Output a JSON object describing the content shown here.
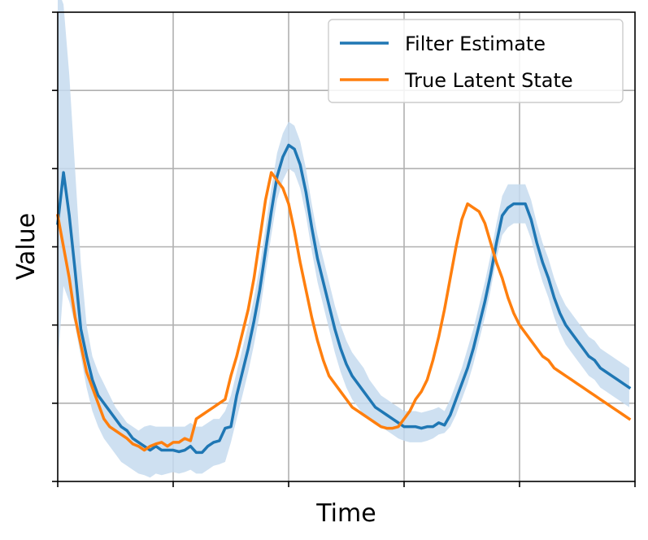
{
  "chart_data": {
    "type": "line",
    "title": "",
    "xlabel": "Time",
    "ylabel": "Value",
    "xlim": [
      0,
      100
    ],
    "ylim": [
      -1.0,
      5.0
    ],
    "grid": true,
    "tick_labels_shown": false,
    "legend": {
      "placement": "upper-right"
    },
    "x_ticks": [
      0,
      20,
      40,
      60,
      80,
      100
    ],
    "y_ticks": [
      -1,
      0,
      1,
      2,
      3,
      4,
      5
    ],
    "colors": {
      "filter": "#1f77b4",
      "truth": "#ff7f0e",
      "band": "#c6dbef"
    },
    "x": [
      0,
      1,
      2,
      3,
      4,
      5,
      6,
      7,
      8,
      9,
      10,
      11,
      12,
      13,
      14,
      15,
      16,
      17,
      18,
      19,
      20,
      21,
      22,
      23,
      24,
      25,
      26,
      27,
      28,
      29,
      30,
      31,
      32,
      33,
      34,
      35,
      36,
      37,
      38,
      39,
      40,
      41,
      42,
      43,
      44,
      45,
      46,
      47,
      48,
      49,
      50,
      51,
      52,
      53,
      54,
      55,
      56,
      57,
      58,
      59,
      60,
      61,
      62,
      63,
      64,
      65,
      66,
      67,
      68,
      69,
      70,
      71,
      72,
      73,
      74,
      75,
      76,
      77,
      78,
      79,
      80,
      81,
      82,
      83,
      84,
      85,
      86,
      87,
      88,
      89,
      90,
      91,
      92,
      93,
      94,
      95,
      96,
      97,
      98,
      99
    ],
    "series": [
      {
        "name": "Filter Estimate",
        "values": [
          2.3,
          2.95,
          2.4,
          1.7,
          0.95,
          0.6,
          0.3,
          0.1,
          0.0,
          -0.1,
          -0.2,
          -0.3,
          -0.35,
          -0.45,
          -0.5,
          -0.55,
          -0.6,
          -0.55,
          -0.6,
          -0.6,
          -0.6,
          -0.62,
          -0.6,
          -0.55,
          -0.63,
          -0.63,
          -0.55,
          -0.5,
          -0.48,
          -0.32,
          -0.3,
          0.1,
          0.4,
          0.7,
          1.05,
          1.45,
          1.95,
          2.45,
          2.9,
          3.15,
          3.3,
          3.25,
          3.05,
          2.7,
          2.25,
          1.85,
          1.55,
          1.25,
          0.95,
          0.7,
          0.5,
          0.35,
          0.25,
          0.15,
          0.05,
          -0.05,
          -0.1,
          -0.15,
          -0.2,
          -0.25,
          -0.3,
          -0.3,
          -0.3,
          -0.32,
          -0.3,
          -0.3,
          -0.25,
          -0.28,
          -0.15,
          0.05,
          0.25,
          0.45,
          0.7,
          1.0,
          1.3,
          1.65,
          2.05,
          2.4,
          2.5,
          2.55,
          2.55,
          2.55,
          2.35,
          2.05,
          1.8,
          1.6,
          1.35,
          1.15,
          1.0,
          0.9,
          0.8,
          0.7,
          0.6,
          0.55,
          0.45,
          0.4,
          0.35,
          0.3,
          0.25,
          0.2
        ]
      },
      {
        "name": "True Latent State",
        "values": [
          2.4,
          2.0,
          1.6,
          1.1,
          0.75,
          0.4,
          0.2,
          0.0,
          -0.2,
          -0.3,
          -0.35,
          -0.4,
          -0.45,
          -0.52,
          -0.55,
          -0.6,
          -0.55,
          -0.52,
          -0.5,
          -0.55,
          -0.5,
          -0.5,
          -0.45,
          -0.48,
          -0.2,
          -0.15,
          -0.1,
          -0.05,
          0.0,
          0.05,
          0.35,
          0.6,
          0.9,
          1.2,
          1.6,
          2.1,
          2.6,
          2.95,
          2.85,
          2.75,
          2.55,
          2.2,
          1.8,
          1.45,
          1.1,
          0.8,
          0.55,
          0.35,
          0.25,
          0.15,
          0.05,
          -0.05,
          -0.1,
          -0.15,
          -0.2,
          -0.25,
          -0.3,
          -0.32,
          -0.32,
          -0.3,
          -0.2,
          -0.1,
          0.05,
          0.15,
          0.3,
          0.55,
          0.85,
          1.2,
          1.6,
          2.0,
          2.35,
          2.55,
          2.5,
          2.45,
          2.3,
          2.05,
          1.8,
          1.6,
          1.35,
          1.15,
          1.0,
          0.9,
          0.8,
          0.7,
          0.6,
          0.55,
          0.45,
          0.4,
          0.35,
          0.3,
          0.25,
          0.2,
          0.15,
          0.1,
          0.05,
          0.0,
          -0.05,
          -0.1,
          -0.15,
          -0.2
        ]
      }
    ],
    "band": {
      "name": "Filter Estimate uncertainty",
      "lower": [
        0.5,
        1.5,
        1.3,
        1.0,
        0.6,
        0.2,
        -0.1,
        -0.3,
        -0.45,
        -0.55,
        -0.65,
        -0.75,
        -0.8,
        -0.85,
        -0.9,
        -0.92,
        -0.95,
        -0.9,
        -0.92,
        -0.9,
        -0.88,
        -0.9,
        -0.88,
        -0.85,
        -0.9,
        -0.9,
        -0.85,
        -0.8,
        -0.78,
        -0.75,
        -0.5,
        -0.2,
        0.1,
        0.4,
        0.75,
        1.15,
        1.65,
        2.15,
        2.6,
        2.85,
        3.0,
        2.95,
        2.75,
        2.4,
        1.95,
        1.55,
        1.25,
        0.95,
        0.65,
        0.4,
        0.2,
        0.05,
        -0.05,
        -0.15,
        -0.2,
        -0.25,
        -0.3,
        -0.35,
        -0.4,
        -0.45,
        -0.48,
        -0.5,
        -0.5,
        -0.5,
        -0.48,
        -0.45,
        -0.4,
        -0.38,
        -0.3,
        -0.15,
        0.05,
        0.25,
        0.5,
        0.8,
        1.1,
        1.45,
        1.85,
        2.15,
        2.25,
        2.3,
        2.3,
        2.3,
        2.1,
        1.8,
        1.55,
        1.35,
        1.1,
        0.9,
        0.75,
        0.65,
        0.55,
        0.45,
        0.35,
        0.3,
        0.2,
        0.15,
        0.1,
        0.05,
        0.0,
        -0.05
      ],
      "upper": [
        5.3,
        5.1,
        4.2,
        3.0,
        1.8,
        1.0,
        0.6,
        0.4,
        0.25,
        0.1,
        -0.05,
        -0.15,
        -0.25,
        -0.3,
        -0.35,
        -0.3,
        -0.28,
        -0.3,
        -0.3,
        -0.3,
        -0.3,
        -0.3,
        -0.3,
        -0.25,
        -0.3,
        -0.3,
        -0.25,
        -0.2,
        -0.2,
        -0.1,
        0.1,
        0.4,
        0.7,
        1.0,
        1.35,
        1.75,
        2.25,
        2.75,
        3.2,
        3.45,
        3.6,
        3.55,
        3.35,
        3.0,
        2.55,
        2.15,
        1.85,
        1.55,
        1.25,
        1.0,
        0.8,
        0.65,
        0.55,
        0.45,
        0.3,
        0.2,
        0.1,
        0.05,
        0.0,
        -0.05,
        -0.1,
        -0.1,
        -0.1,
        -0.12,
        -0.1,
        -0.08,
        -0.05,
        -0.1,
        0.05,
        0.25,
        0.45,
        0.7,
        0.95,
        1.25,
        1.55,
        1.9,
        2.3,
        2.65,
        2.8,
        2.8,
        2.8,
        2.8,
        2.6,
        2.3,
        2.05,
        1.85,
        1.6,
        1.4,
        1.25,
        1.15,
        1.05,
        0.95,
        0.85,
        0.8,
        0.7,
        0.65,
        0.6,
        0.55,
        0.5,
        0.45
      ]
    }
  }
}
